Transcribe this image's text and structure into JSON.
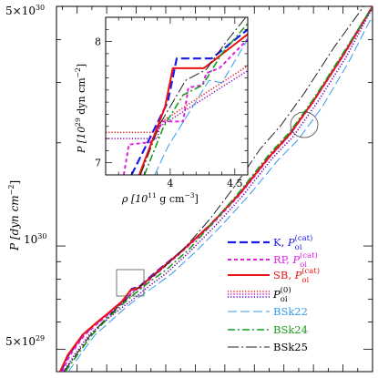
{
  "chart_data": {
    "type": "line",
    "main": {
      "ylabel": "P  [dyn cm",
      "ylabel_exp": "−2",
      "yscale": "log",
      "ylim": [
        4.3e+29,
        5e+30
      ],
      "xlim": [
        3.3,
        14.0
      ],
      "yticks": [
        {
          "value": 5e+29,
          "mantissa": "5×10",
          "exp": "29"
        },
        {
          "value": 1e+30,
          "mantissa": "10",
          "exp": "30"
        },
        {
          "value": 5e+30,
          "mantissa": "5×10",
          "exp": "30"
        }
      ],
      "xtick_labels_shown": false
    },
    "inset": {
      "xlabel": "ρ  [10",
      "xlabel_exp": "11",
      "xlabel_tail": " g cm",
      "xlabel_tail_exp": "−3",
      "xlabel_close": "]",
      "ylabel": "P  [10",
      "ylabel_exp": "29",
      "ylabel_tail": " dyn cm",
      "ylabel_tail_exp": "−2",
      "ylabel_close": "]",
      "xlim": [
        3.5,
        4.6
      ],
      "ylim": [
        6.9,
        8.2
      ],
      "xticks": [
        {
          "value": 4.0,
          "label": "4"
        },
        {
          "value": 4.5,
          "label": "4.5"
        }
      ],
      "yticks": [
        {
          "value": 7,
          "label": "7"
        },
        {
          "value": 8,
          "label": "8"
        }
      ]
    },
    "legend": {
      "placement": "lower-right",
      "entries": [
        {
          "key": "K",
          "text": "K, ",
          "sym": "P",
          "sub": "oi",
          "sup": "(cat)",
          "color": "#1a1aee",
          "dash": "9,4",
          "width": 2.2
        },
        {
          "key": "RP",
          "text": "RP, ",
          "sym": "P",
          "sub": "oi",
          "sup": "(cat)",
          "color": "#e020e0",
          "dash": "4,3",
          "width": 2.0
        },
        {
          "key": "SB",
          "text": "SB, ",
          "sym": "P",
          "sub": "oi",
          "sup": "(cat)",
          "color": "#ee1111",
          "dash": "",
          "width": 2.0
        },
        {
          "key": "P0",
          "text": "",
          "sym": "P",
          "sub": "oi",
          "sup": "(0)",
          "color": "#ee1111",
          "dash": "1.2,2",
          "width": 1.5,
          "triple": true
        },
        {
          "key": "BSk22",
          "text": "BSk22",
          "color": "#3399ee",
          "dash": "10,4",
          "width": 1.0
        },
        {
          "key": "BSk24",
          "text": "BSk24",
          "color": "#1a9a1a",
          "dash": "8,3,2,3",
          "width": 1.6
        },
        {
          "key": "BSk25",
          "text": "BSk25",
          "color": "#222222",
          "dash": "12,3,2,3",
          "width": 1.0
        }
      ]
    },
    "series_main": [
      {
        "name": "K",
        "color": "#1a1aee",
        "dash": "9,4",
        "width": 2.2,
        "points": [
          [
            3.45,
            4.3e+29
          ],
          [
            3.7,
            4.8e+29
          ],
          [
            4.2,
            5.5e+29
          ],
          [
            4.7,
            6e+29
          ],
          [
            5.0,
            6.3e+29
          ],
          [
            5.55,
            6.9e+29
          ],
          [
            5.85,
            7.5e+29
          ],
          [
            6.1,
            7.6e+29
          ],
          [
            6.6,
            8.3e+29
          ],
          [
            7.5,
            9.6e+29
          ],
          [
            8.5,
            1.15e+30
          ],
          [
            9.5,
            1.42e+30
          ],
          [
            10.5,
            1.82e+30
          ],
          [
            11.2,
            2.12e+30
          ],
          [
            12.0,
            2.65e+30
          ],
          [
            13.0,
            3.6e+30
          ],
          [
            14.0,
            5e+30
          ]
        ]
      },
      {
        "name": "RP",
        "color": "#e020e0",
        "dash": "4,3",
        "width": 2.0,
        "points": [
          [
            3.5,
            4.3e+29
          ],
          [
            3.75,
            4.8e+29
          ],
          [
            4.25,
            5.5e+29
          ],
          [
            4.75,
            6e+29
          ],
          [
            5.05,
            6.3e+29
          ],
          [
            5.6,
            6.9e+29
          ],
          [
            5.9,
            7.4e+29
          ],
          [
            6.15,
            7.55e+29
          ],
          [
            6.65,
            8.25e+29
          ],
          [
            7.5,
            9.55e+29
          ],
          [
            8.5,
            1.14e+30
          ],
          [
            9.5,
            1.41e+30
          ],
          [
            10.5,
            1.81e+30
          ],
          [
            11.2,
            2.11e+30
          ],
          [
            12.0,
            2.64e+30
          ],
          [
            13.0,
            3.58e+30
          ],
          [
            14.0,
            4.98e+30
          ]
        ]
      },
      {
        "name": "SB",
        "color": "#ee1111",
        "dash": "",
        "width": 2.0,
        "points": [
          [
            3.42,
            4.3e+29
          ],
          [
            3.68,
            4.8e+29
          ],
          [
            4.18,
            5.5e+29
          ],
          [
            4.68,
            6e+29
          ],
          [
            4.98,
            6.3e+29
          ],
          [
            5.52,
            6.9e+29
          ],
          [
            5.82,
            7.45e+29
          ],
          [
            6.08,
            7.55e+29
          ],
          [
            6.6,
            8.25e+29
          ],
          [
            7.5,
            9.6e+29
          ],
          [
            8.5,
            1.15e+30
          ],
          [
            9.5,
            1.42e+30
          ],
          [
            10.5,
            1.82e+30
          ],
          [
            11.2,
            2.12e+30
          ],
          [
            12.0,
            2.65e+30
          ],
          [
            13.0,
            3.6e+30
          ],
          [
            14.0,
            5e+30
          ]
        ]
      },
      {
        "name": "P0",
        "color": "#6a00b0",
        "dash": "1.2,2",
        "width": 1.6,
        "points": [
          [
            3.55,
            4.3e+29
          ],
          [
            3.9,
            4.8e+29
          ],
          [
            4.4,
            5.5e+29
          ],
          [
            4.9,
            6e+29
          ],
          [
            5.3,
            6.4e+29
          ],
          [
            5.9,
            7e+29
          ],
          [
            6.4,
            7.6e+29
          ],
          [
            7.0,
            8.3e+29
          ],
          [
            7.8,
            9.6e+29
          ],
          [
            8.7,
            1.15e+30
          ],
          [
            9.6,
            1.4e+30
          ],
          [
            10.6,
            1.8e+30
          ],
          [
            11.3,
            2.08e+30
          ],
          [
            12.1,
            2.6e+30
          ],
          [
            13.1,
            3.55e+30
          ],
          [
            14.0,
            4.95e+30
          ]
        ]
      },
      {
        "name": "BSk22",
        "color": "#3399ee",
        "dash": "10,4",
        "width": 1.0,
        "points": [
          [
            3.7,
            4.3e+29
          ],
          [
            4.1,
            4.8e+29
          ],
          [
            4.6,
            5.5e+29
          ],
          [
            5.1,
            6e+29
          ],
          [
            5.5,
            6.45e+29
          ],
          [
            6.1,
            7.1e+29
          ],
          [
            6.6,
            7.6e+29
          ],
          [
            7.2,
            8.3e+29
          ],
          [
            8.0,
            9.6e+29
          ],
          [
            8.9,
            1.15e+30
          ],
          [
            9.8,
            1.4e+30
          ],
          [
            10.8,
            1.78e+30
          ],
          [
            11.5,
            2.05e+30
          ],
          [
            12.3,
            2.55e+30
          ],
          [
            13.2,
            3.45e+30
          ],
          [
            14.0,
            4.7e+30
          ]
        ]
      },
      {
        "name": "BSk24",
        "color": "#1a9a1a",
        "dash": "8,3,2,3",
        "width": 1.6,
        "points": [
          [
            3.6,
            4.3e+29
          ],
          [
            4.0,
            4.8e+29
          ],
          [
            4.5,
            5.5e+29
          ],
          [
            5.0,
            6.1e+29
          ],
          [
            5.4,
            6.6e+29
          ],
          [
            5.9,
            7.2e+29
          ],
          [
            6.4,
            7.8e+29
          ],
          [
            7.0,
            8.5e+29
          ],
          [
            7.8,
            9.8e+29
          ],
          [
            8.6,
            1.17e+30
          ],
          [
            9.5,
            1.44e+30
          ],
          [
            10.5,
            1.85e+30
          ],
          [
            11.2,
            2.15e+30
          ],
          [
            12.0,
            2.68e+30
          ],
          [
            13.0,
            3.65e+30
          ],
          [
            14.0,
            5e+30
          ]
        ]
      },
      {
        "name": "BSk25",
        "color": "#222222",
        "dash": "12,3,2,3",
        "width": 1.0,
        "points": [
          [
            3.55,
            4.3e+29
          ],
          [
            3.95,
            4.8e+29
          ],
          [
            4.45,
            5.5e+29
          ],
          [
            4.95,
            6.1e+29
          ],
          [
            5.35,
            6.6e+29
          ],
          [
            5.85,
            7.25e+29
          ],
          [
            6.35,
            7.9e+29
          ],
          [
            6.9,
            8.6e+29
          ],
          [
            7.7,
            1e+30
          ],
          [
            8.5,
            1.2e+30
          ],
          [
            9.3,
            1.48e+30
          ],
          [
            10.2,
            1.92e+30
          ],
          [
            10.9,
            2.25e+30
          ],
          [
            11.7,
            2.8e+30
          ],
          [
            12.7,
            3.8e+30
          ],
          [
            13.7,
            5e+30
          ]
        ]
      }
    ],
    "series_inset": [
      {
        "name": "K",
        "color": "#1a1aee",
        "dash": "9,4",
        "width": 2.2,
        "points": [
          [
            3.7,
            6.9
          ],
          [
            3.98,
            7.5
          ],
          [
            4.05,
            7.86
          ],
          [
            4.32,
            7.86
          ],
          [
            4.6,
            8.1
          ]
        ]
      },
      {
        "name": "RP",
        "color": "#e020e0",
        "dash": "4,3",
        "width": 2.0,
        "points": [
          [
            3.64,
            6.9
          ],
          [
            3.68,
            7.15
          ],
          [
            3.85,
            7.17
          ],
          [
            3.94,
            7.34
          ],
          [
            4.1,
            7.34
          ],
          [
            4.14,
            7.62
          ],
          [
            4.25,
            7.64
          ],
          [
            4.28,
            7.74
          ],
          [
            4.38,
            7.78
          ],
          [
            4.6,
            8.02
          ]
        ]
      },
      {
        "name": "SB",
        "color": "#ee1111",
        "dash": "",
        "width": 2.0,
        "points": [
          [
            3.76,
            6.9
          ],
          [
            3.96,
            7.46
          ],
          [
            4.02,
            7.78
          ],
          [
            4.26,
            7.78
          ],
          [
            4.6,
            8.06
          ]
        ]
      },
      {
        "name": "P0",
        "color": "#ee1111",
        "dash": "1.2,2",
        "width": 1.5,
        "points": [
          [
            3.5,
            7.25
          ],
          [
            3.9,
            7.25
          ],
          [
            3.92,
            7.33
          ],
          [
            4.6,
            7.8
          ]
        ]
      },
      {
        "name": "P0b",
        "color": "#8a00b0",
        "dash": "1.2,2",
        "width": 1.5,
        "points": [
          [
            3.5,
            7.2
          ],
          [
            3.9,
            7.2
          ],
          [
            3.92,
            7.3
          ],
          [
            4.6,
            7.76
          ]
        ]
      },
      {
        "name": "BSk22",
        "color": "#3399ee",
        "dash": "10,4",
        "width": 1.0,
        "points": [
          [
            3.88,
            6.9
          ],
          [
            3.98,
            7.13
          ],
          [
            4.3,
            7.68
          ],
          [
            4.4,
            7.66
          ],
          [
            4.6,
            8.02
          ]
        ]
      },
      {
        "name": "BSk24",
        "color": "#1a9a1a",
        "dash": "8,3,2,3",
        "width": 1.6,
        "points": [
          [
            3.8,
            6.9
          ],
          [
            3.95,
            7.3
          ],
          [
            4.1,
            7.56
          ],
          [
            4.25,
            7.64
          ],
          [
            4.4,
            7.9
          ],
          [
            4.6,
            8.15
          ]
        ]
      },
      {
        "name": "BSk25",
        "color": "#222222",
        "dash": "12,3,2,3",
        "width": 1.0,
        "points": [
          [
            3.77,
            6.9
          ],
          [
            3.92,
            7.32
          ],
          [
            4.12,
            7.68
          ],
          [
            4.28,
            7.77
          ],
          [
            4.42,
            7.98
          ],
          [
            4.6,
            8.22
          ]
        ]
      }
    ]
  }
}
